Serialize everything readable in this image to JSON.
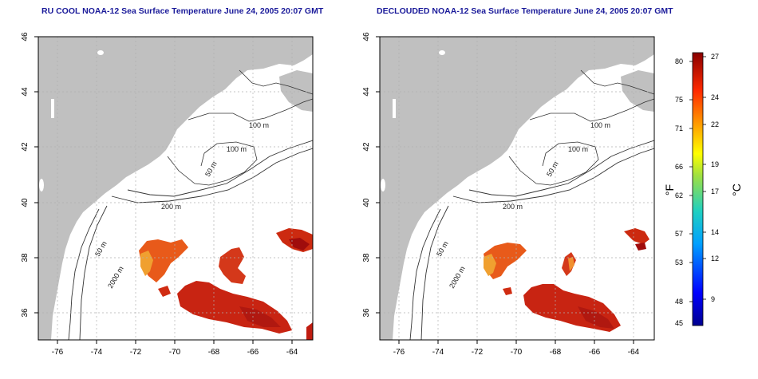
{
  "panels": [
    {
      "title": "RU COOL NOAA-12 Sea Surface Temperature June 24, 2005 20:07 GMT",
      "contours": [
        "100 m",
        "100 m",
        "50 m",
        "200 m",
        "50 m",
        "2000 m"
      ]
    },
    {
      "title": "DECLOUDED NOAA-12 Sea Surface Temperature June 24, 2005 20:07 GMT",
      "contours": [
        "100 m",
        "100 m",
        "50 m",
        "200 m",
        "50 m",
        "2000 m"
      ]
    }
  ],
  "axes": {
    "x_ticks": [
      "-76",
      "-74",
      "-72",
      "-70",
      "-68",
      "-66",
      "-64"
    ],
    "y_ticks": [
      "46",
      "44",
      "42",
      "40",
      "38",
      "36"
    ]
  },
  "colorbar": {
    "unit_left": "°F",
    "unit_right": "°C",
    "f_ticks": [
      "80",
      "75",
      "71",
      "66",
      "62",
      "57",
      "53",
      "48",
      "45"
    ],
    "c_ticks": [
      "27",
      "24",
      "22",
      "19",
      "17",
      "14",
      "12",
      "9"
    ]
  },
  "colors": {
    "land": "#c0c0c0",
    "title": "#1a1a9a",
    "grid": "#b0b0b0",
    "warm": "#cc2200",
    "hot": "#a00000",
    "mid": "#ee7722"
  }
}
